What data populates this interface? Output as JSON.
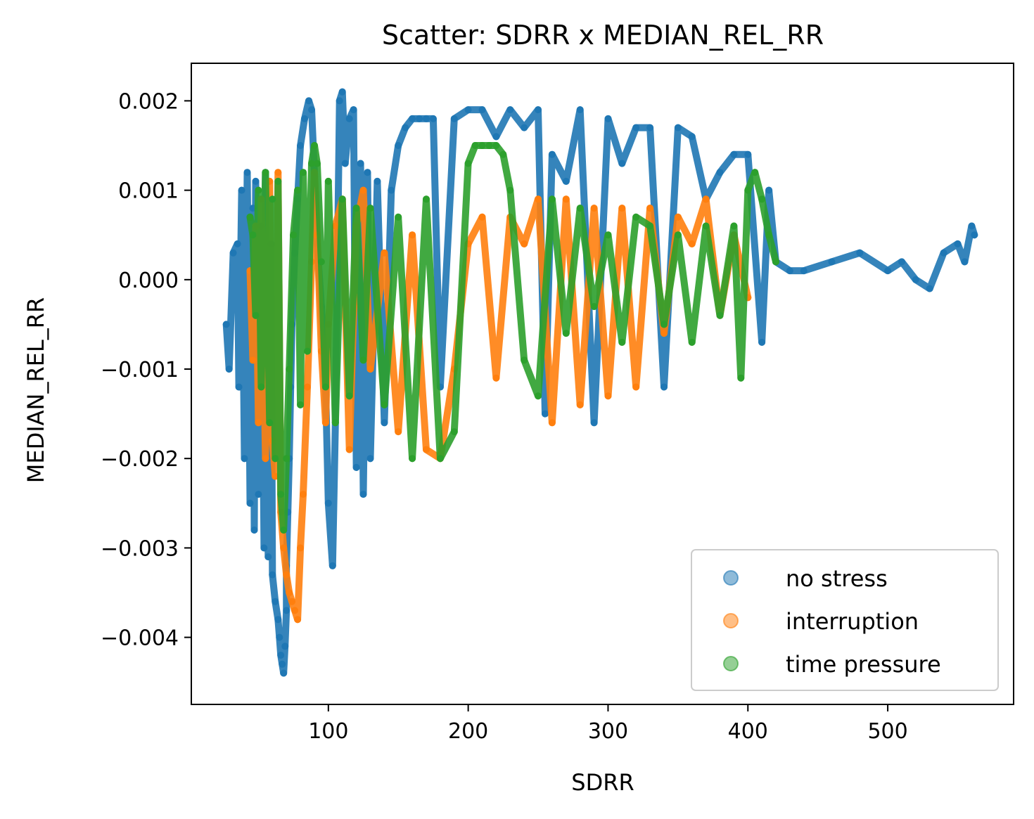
{
  "chart_data": {
    "type": "scatter",
    "title": "Scatter: SDRR x MEDIAN_REL_RR",
    "xlabel": "SDRR",
    "ylabel": "MEDIAN_REL_RR",
    "xlim": [
      2,
      590
    ],
    "ylim": [
      -0.00475,
      0.00242
    ],
    "xticks": [
      100,
      200,
      300,
      400,
      500
    ],
    "xtick_labels": [
      "100",
      "200",
      "300",
      "400",
      "500"
    ],
    "yticks": [
      0.002,
      0.001,
      0.0,
      -0.001,
      -0.002,
      -0.003,
      -0.004
    ],
    "ytick_labels": [
      "0.002",
      "0.001",
      "0.000",
      "−0.001",
      "−0.002",
      "−0.003",
      "−0.004"
    ],
    "grid": false,
    "legend_position": "lower-right",
    "series": [
      {
        "name": "no stress",
        "color": "#1f77b4",
        "x": [
          27,
          29,
          32,
          35,
          36,
          38,
          40,
          42,
          44,
          46,
          47,
          48,
          50,
          52,
          54,
          55,
          57,
          59,
          60,
          62,
          64,
          65,
          66,
          67,
          68,
          69,
          70,
          70,
          71,
          72,
          73,
          74,
          76,
          78,
          80,
          83,
          86,
          88,
          90,
          92,
          95,
          98,
          100,
          103,
          105,
          108,
          110,
          112,
          115,
          118,
          120,
          123,
          125,
          128,
          130,
          135,
          140,
          145,
          150,
          155,
          160,
          165,
          170,
          175,
          180,
          190,
          200,
          210,
          220,
          230,
          240,
          250,
          255,
          260,
          270,
          280,
          290,
          300,
          310,
          320,
          330,
          340,
          350,
          360,
          370,
          380,
          390,
          400,
          410,
          415,
          420,
          430,
          440,
          460,
          480,
          500,
          510,
          520,
          530,
          540,
          550,
          555,
          560,
          562
        ],
        "y": [
          -0.0005,
          -0.001,
          0.0003,
          0.0004,
          -0.0012,
          0.001,
          -0.002,
          0.0012,
          -0.0025,
          0.0008,
          -0.0028,
          0.0011,
          -0.0024,
          0.0006,
          -0.003,
          0.0012,
          -0.0031,
          0.0004,
          -0.0033,
          -0.0036,
          -0.0038,
          -0.004,
          -0.0042,
          -0.0043,
          -0.0044,
          -0.0041,
          -0.0037,
          -0.0032,
          -0.0026,
          -0.002,
          -0.0012,
          -0.0005,
          0.0003,
          0.0009,
          0.0015,
          0.0018,
          0.002,
          0.0019,
          0.0012,
          0.0004,
          -0.0003,
          -0.0012,
          -0.0025,
          -0.0032,
          -0.0016,
          0.002,
          0.0021,
          0.0013,
          0.0018,
          0.0019,
          -0.0021,
          0.0013,
          -0.0024,
          0.0012,
          -0.002,
          0.0011,
          -0.0016,
          0.001,
          0.0015,
          0.0017,
          0.0018,
          0.0018,
          0.0018,
          0.0018,
          -0.0012,
          0.0018,
          0.0019,
          0.0019,
          0.0016,
          0.0019,
          0.0017,
          0.0019,
          -0.0015,
          0.0014,
          0.0011,
          0.0019,
          -0.0016,
          0.0018,
          0.0013,
          0.0017,
          0.0017,
          -0.0012,
          0.0017,
          0.0016,
          0.0009,
          0.0012,
          0.0014,
          0.0014,
          -0.0007,
          0.001,
          0.0002,
          0.0001,
          0.0001,
          0.0002,
          0.0003,
          0.0001,
          0.0002,
          0.0,
          -0.0001,
          0.0003,
          0.0004,
          0.0002,
          0.0006,
          0.0005
        ],
        "style": "continuous-trace"
      },
      {
        "name": "interruption",
        "color": "#ff7f0e",
        "x": [
          44,
          46,
          48,
          50,
          52,
          55,
          58,
          60,
          62,
          64,
          66,
          68,
          70,
          72,
          74,
          76,
          78,
          80,
          82,
          85,
          88,
          90,
          92,
          95,
          98,
          100,
          105,
          110,
          115,
          120,
          125,
          130,
          140,
          150,
          160,
          170,
          180,
          190,
          200,
          210,
          220,
          230,
          240,
          250,
          260,
          270,
          280,
          290,
          300,
          310,
          320,
          330,
          340,
          350,
          360,
          370,
          380,
          390,
          400
        ],
        "y": [
          0.0001,
          -0.0009,
          0.0006,
          -0.0016,
          0.0009,
          -0.002,
          0.0011,
          -0.0018,
          -0.0022,
          0.0012,
          -0.0026,
          -0.003,
          -0.0033,
          -0.0035,
          -0.0036,
          -0.0037,
          -0.0038,
          -0.003,
          -0.0024,
          -0.0012,
          0.0002,
          0.0012,
          0.0005,
          -0.0008,
          -0.0016,
          -0.0005,
          0.0006,
          0.0009,
          -0.0019,
          0.0006,
          0.001,
          -0.001,
          0.0003,
          -0.0017,
          0.0005,
          -0.0019,
          -0.002,
          -0.001,
          0.0004,
          0.0007,
          -0.0011,
          0.0007,
          0.0004,
          0.0009,
          -0.0016,
          0.0009,
          -0.0014,
          0.0008,
          -0.0013,
          0.0008,
          -0.0012,
          0.0008,
          -0.0006,
          0.0007,
          0.0004,
          0.0009,
          -0.0004,
          0.0005,
          -0.0002
        ],
        "style": "continuous-trace"
      },
      {
        "name": "time pressure",
        "color": "#2ca02c",
        "x": [
          44,
          46,
          48,
          50,
          52,
          55,
          58,
          60,
          62,
          64,
          66,
          68,
          70,
          72,
          75,
          78,
          80,
          82,
          85,
          88,
          90,
          92,
          95,
          98,
          100,
          105,
          110,
          115,
          120,
          125,
          130,
          140,
          150,
          160,
          170,
          180,
          190,
          200,
          205,
          210,
          215,
          220,
          225,
          230,
          240,
          250,
          260,
          270,
          280,
          290,
          300,
          310,
          320,
          330,
          340,
          350,
          360,
          370,
          380,
          390,
          395,
          400,
          405,
          410,
          415,
          420
        ],
        "y": [
          0.0007,
          0.0005,
          -0.0004,
          0.001,
          -0.0012,
          0.0012,
          -0.0016,
          0.0009,
          -0.002,
          0.0011,
          -0.0024,
          -0.0028,
          -0.002,
          -0.001,
          0.0005,
          0.001,
          -0.0014,
          0.0012,
          -0.0008,
          0.0013,
          0.0015,
          0.0013,
          0.0002,
          -0.0012,
          0.0011,
          -0.0016,
          0.0009,
          -0.0013,
          0.0008,
          -0.0009,
          0.0008,
          -0.0014,
          0.0007,
          -0.002,
          0.0009,
          -0.002,
          -0.0017,
          0.0013,
          0.0015,
          0.0015,
          0.0015,
          0.0015,
          0.0014,
          0.001,
          -0.0009,
          -0.0013,
          0.0009,
          -0.0006,
          0.0008,
          -0.0003,
          0.0005,
          -0.0007,
          0.0007,
          0.0006,
          -0.0005,
          0.0005,
          -0.0007,
          0.0006,
          -0.0004,
          0.0006,
          -0.0011,
          0.001,
          0.0012,
          0.0009,
          0.0005,
          0.0002
        ],
        "style": "continuous-trace"
      }
    ]
  }
}
